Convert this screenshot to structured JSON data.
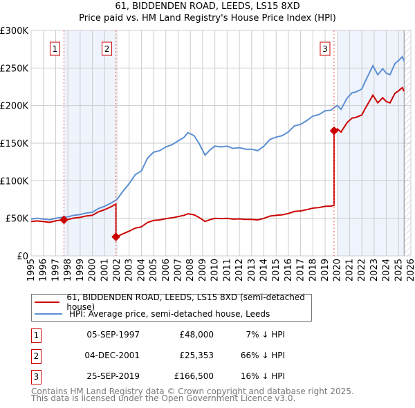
{
  "title": "61, BIDDENDEN ROAD, LEEDS, LS15 8XD",
  "subtitle": "Price paid vs. HM Land Registry's House Price Index (HPI)",
  "legend": {
    "property_label": "61, BIDDENDEN ROAD, LEEDS, LS15 8XD (semi-detached house)",
    "hpi_label": "HPI: Average price, semi-detached house, Leeds"
  },
  "colors": {
    "property": "#cc0000",
    "hpi": "#5b8fd4",
    "shade": "#eef3fc"
  },
  "sales": [
    {
      "num": "1",
      "date": "05-SEP-1997",
      "price": "£48,000",
      "hpi_diff": "7% ↓ HPI",
      "year": 1997.68,
      "value": 48000
    },
    {
      "num": "2",
      "date": "04-DEC-2001",
      "price": "£25,353",
      "hpi_diff": "66% ↓ HPI",
      "year": 2001.92,
      "value": 25353
    },
    {
      "num": "3",
      "date": "25-SEP-2019",
      "price": "£166,500",
      "hpi_diff": "16% ↓ HPI",
      "year": 2019.73,
      "value": 166500
    }
  ],
  "footer": {
    "line1": "Contains HM Land Registry data © Crown copyright and database right 2025.",
    "line2": "This data is licensed under the Open Government Licence v3.0."
  },
  "chart_data": {
    "type": "line",
    "title": "61, BIDDENDEN ROAD, LEEDS, LS15 8XD",
    "subtitle": "Price paid vs. HM Land Registry's House Price Index (HPI)",
    "xlim": [
      1995,
      2026
    ],
    "ylim": [
      0,
      300000
    ],
    "x_ticks": [
      "1995",
      "1996",
      "1997",
      "1998",
      "1999",
      "2000",
      "2001",
      "2002",
      "2003",
      "2004",
      "2005",
      "2006",
      "2007",
      "2008",
      "2009",
      "2010",
      "2011",
      "2012",
      "2013",
      "2014",
      "2015",
      "2016",
      "2017",
      "2018",
      "2019",
      "2020",
      "2021",
      "2022",
      "2023",
      "2024",
      "2025",
      "2026"
    ],
    "y_ticks": [
      {
        "v": 0,
        "label": "£0"
      },
      {
        "v": 50000,
        "label": "£50K"
      },
      {
        "v": 100000,
        "label": "£100K"
      },
      {
        "v": 150000,
        "label": "£150K"
      },
      {
        "v": 200000,
        "label": "£200K"
      },
      {
        "v": 250000,
        "label": "£250K"
      },
      {
        "v": 300000,
        "label": "£300K"
      }
    ],
    "grid": true,
    "shaded_ranges": [
      [
        1997.68,
        2001.92
      ],
      [
        2020.0,
        2025.45
      ]
    ],
    "hatched_from": 2025.45,
    "hpi_series": {
      "name": "HPI: Average price, semi-detached house, Leeds",
      "x": [
        1995,
        1995.5,
        1996,
        1996.5,
        1997,
        1997.4,
        1997.7,
        1998,
        1998.5,
        1999,
        1999.5,
        2000,
        2000.5,
        2001,
        2001.5,
        2002,
        2002.5,
        2003,
        2003.5,
        2004,
        2004.5,
        2005,
        2005.5,
        2006,
        2006.5,
        2007,
        2007.5,
        2007.8,
        2008.3,
        2008.7,
        2009.2,
        2009.6,
        2010,
        2010.5,
        2011,
        2011.5,
        2012,
        2012.5,
        2013,
        2013.5,
        2014,
        2014.5,
        2015,
        2015.5,
        2016,
        2016.5,
        2017,
        2017.5,
        2018,
        2018.5,
        2019,
        2019.5,
        2019.8,
        2020,
        2020.3,
        2020.8,
        2021.2,
        2021.5,
        2022,
        2022.3,
        2022.9,
        2023.3,
        2023.7,
        2024,
        2024.3,
        2024.7,
        2025,
        2025.3,
        2025.45
      ],
      "y": [
        49000,
        50000,
        49000,
        48000,
        50000,
        51000,
        51600,
        52000,
        54000,
        55000,
        57000,
        58000,
        63000,
        66000,
        70000,
        75000,
        86000,
        96000,
        108000,
        113000,
        130000,
        138000,
        140000,
        145000,
        148000,
        153000,
        158000,
        164000,
        160000,
        150000,
        134000,
        141000,
        146000,
        145000,
        146000,
        143000,
        144000,
        142000,
        142000,
        140000,
        146000,
        155000,
        158000,
        160000,
        165000,
        173000,
        175000,
        180000,
        186000,
        188000,
        193000,
        194000,
        198000,
        200000,
        195000,
        210000,
        217000,
        218000,
        222000,
        233000,
        253000,
        241000,
        249000,
        243000,
        241000,
        256000,
        260000,
        265000,
        259000
      ]
    },
    "property_series": {
      "name": "61, BIDDENDEN ROAD, LEEDS, LS15 8XD (semi-detached house)",
      "note": "price paid indexed by HPI from each sale"
    }
  }
}
